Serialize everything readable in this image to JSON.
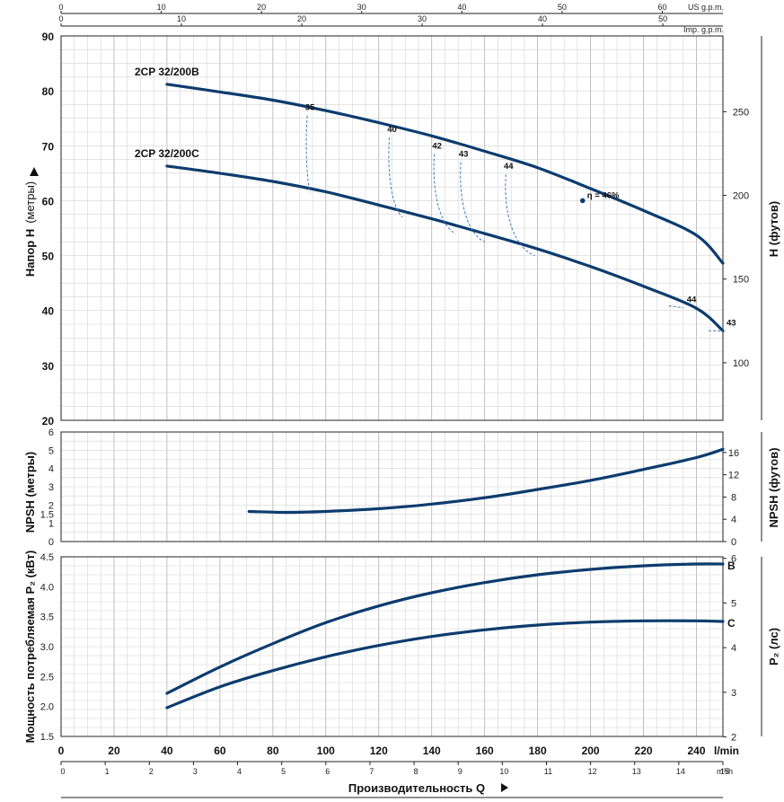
{
  "chart_data": [
    {
      "type": "line",
      "panel": "head",
      "ylabel": "Напор H",
      "ylabel_unit": "(метры)",
      "y2label": "H (футов)",
      "ylim": [
        20,
        90
      ],
      "yticks": [
        20,
        30,
        40,
        50,
        60,
        70,
        80,
        90
      ],
      "y2ticks": [
        100,
        150,
        200,
        250
      ],
      "top_axis_us": {
        "label": "US g.p.m.",
        "ticks": [
          0,
          10,
          20,
          30,
          40,
          50,
          60
        ]
      },
      "top_axis_imp": {
        "label": "Imp. g.p.m.",
        "ticks": [
          0,
          10,
          20,
          30,
          40,
          50
        ]
      },
      "series": [
        {
          "name": "2CP 32/200B",
          "x": [
            40,
            60,
            80,
            100,
            120,
            140,
            160,
            180,
            200,
            220,
            240,
            250
          ],
          "y": [
            81.2,
            79.8,
            78.3,
            76.4,
            74.2,
            71.8,
            69.0,
            66.0,
            62.2,
            58.2,
            53.7,
            48.6
          ]
        },
        {
          "name": "2CP 32/200C",
          "x": [
            40,
            60,
            80,
            100,
            120,
            140,
            160,
            180,
            200,
            220,
            240,
            250
          ],
          "y": [
            66.3,
            65.0,
            63.5,
            61.6,
            59.2,
            56.7,
            54.0,
            51.2,
            48.0,
            44.4,
            40.4,
            36.3
          ]
        }
      ],
      "efficiency_lines": [
        {
          "label": "35",
          "x_top": 93,
          "y_top": 75.5,
          "x_bot": 94,
          "y_bot": 61.5
        },
        {
          "label": "40",
          "x_top": 124,
          "y_top": 71.5,
          "x_bot": 129,
          "y_bot": 57.0
        },
        {
          "label": "42",
          "x_top": 141,
          "y_top": 68.5,
          "x_bot": 149,
          "y_bot": 54.0
        },
        {
          "label": "43",
          "x_top": 151,
          "y_top": 67.0,
          "x_bot": 160,
          "y_bot": 52.5
        },
        {
          "label": "44",
          "x_top": 168,
          "y_top": 64.8,
          "x_bot": 179,
          "y_bot": 50.0
        }
      ],
      "annotations": [
        {
          "text": "η = 46%",
          "series": "2CP 32/200B",
          "x": 197,
          "y": 60.0
        },
        {
          "text": "44",
          "series": "2CP 32/200C",
          "x": 235,
          "y": 40.5
        },
        {
          "text": "43",
          "series": "2CP 32/200C",
          "x": 250,
          "y": 36.3
        }
      ]
    },
    {
      "type": "line",
      "panel": "npsh",
      "ylabel": "NPSH (метры)",
      "y2label": "NPSH (футов)",
      "ylim": [
        0,
        6
      ],
      "yticks": [
        0,
        1,
        1.5,
        2,
        3,
        4,
        5,
        6
      ],
      "y2ticks": [
        0,
        4,
        8,
        12,
        16
      ],
      "series": [
        {
          "name": "NPSH",
          "x": [
            71,
            85,
            100,
            120,
            140,
            160,
            180,
            200,
            220,
            240,
            250
          ],
          "y": [
            1.65,
            1.6,
            1.65,
            1.8,
            2.05,
            2.4,
            2.85,
            3.35,
            3.95,
            4.6,
            5.05
          ]
        }
      ]
    },
    {
      "type": "line",
      "panel": "power",
      "ylabel": "Мощность потребляемая P₂ (кВт)",
      "y2label": "P₂ (лс)",
      "ylim": [
        1.5,
        4.5
      ],
      "yticks": [
        1.5,
        2.0,
        2.5,
        3.0,
        3.5,
        4.0,
        4.5
      ],
      "y2ticks": [
        2,
        3,
        4,
        5,
        6
      ],
      "series": [
        {
          "name": "B",
          "x": [
            40,
            60,
            80,
            100,
            120,
            140,
            160,
            180,
            200,
            220,
            240,
            250
          ],
          "y": [
            2.22,
            2.66,
            3.05,
            3.4,
            3.68,
            3.9,
            4.07,
            4.2,
            4.29,
            4.35,
            4.38,
            4.38
          ]
        },
        {
          "name": "C",
          "x": [
            40,
            60,
            80,
            100,
            120,
            140,
            160,
            180,
            200,
            220,
            240,
            250
          ],
          "y": [
            1.98,
            2.33,
            2.6,
            2.83,
            3.02,
            3.17,
            3.28,
            3.36,
            3.41,
            3.43,
            3.43,
            3.42
          ]
        }
      ]
    }
  ],
  "bottom_axis": {
    "lmin_ticks": [
      0,
      20,
      40,
      60,
      80,
      100,
      120,
      140,
      160,
      180,
      200,
      220,
      240
    ],
    "lmin_unit": "l/min",
    "m3h_ticks": [
      0,
      1,
      2,
      3,
      4,
      5,
      6,
      7,
      8,
      9,
      10,
      11,
      12,
      13,
      14,
      15
    ],
    "m3h_unit": "m³/h",
    "xlim": [
      0,
      250
    ],
    "title": "Производительность Q"
  },
  "colors": {
    "curve": "#0d3c6e",
    "iso": "#3d7fc0"
  }
}
